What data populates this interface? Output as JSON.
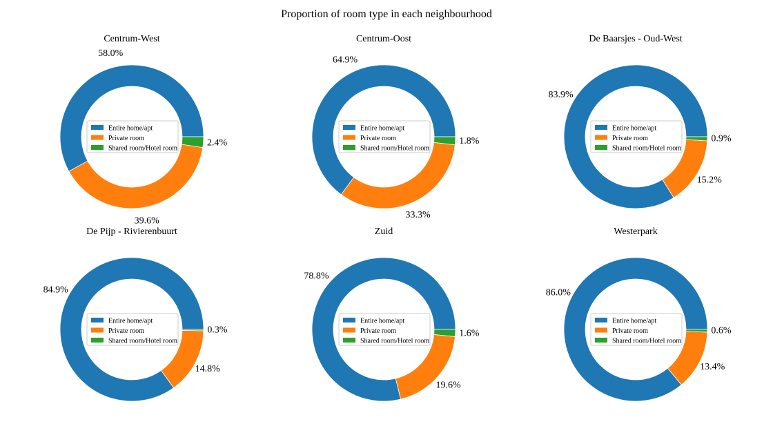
{
  "figure": {
    "title": "Proportion of room type in each neighbourhood"
  },
  "legend": {
    "entries": [
      "Entire home/apt",
      "Private room",
      "Shared room/Hotel room"
    ],
    "placement": "center",
    "colors": [
      "#1f77b4",
      "#ff7f0e",
      "#2ca02c"
    ]
  },
  "chart_data": [
    {
      "type": "pie",
      "style": "donut",
      "title": "Centrum-West",
      "categories": [
        "Entire home/apt",
        "Private room",
        "Shared room/Hotel room"
      ],
      "values": [
        58.0,
        39.6,
        2.4
      ],
      "labels": [
        "58.0%",
        "39.6%",
        "2.4%"
      ]
    },
    {
      "type": "pie",
      "style": "donut",
      "title": "Centrum-Oost",
      "categories": [
        "Entire home/apt",
        "Private room",
        "Shared room/Hotel room"
      ],
      "values": [
        64.9,
        33.3,
        1.8
      ],
      "labels": [
        "64.9%",
        "33.3%",
        "1.8%"
      ]
    },
    {
      "type": "pie",
      "style": "donut",
      "title": "De Baarsjes - Oud-West",
      "categories": [
        "Entire home/apt",
        "Private room",
        "Shared room/Hotel room"
      ],
      "values": [
        83.9,
        15.2,
        0.9
      ],
      "labels": [
        "83.9%",
        "15.2%",
        "0.9%"
      ]
    },
    {
      "type": "pie",
      "style": "donut",
      "title": "De Pijp - Rivierenbuurt",
      "categories": [
        "Entire home/apt",
        "Private room",
        "Shared room/Hotel room"
      ],
      "values": [
        84.9,
        14.8,
        0.3
      ],
      "labels": [
        "84.9%",
        "14.8%",
        "0.3%"
      ]
    },
    {
      "type": "pie",
      "style": "donut",
      "title": "Zuid",
      "categories": [
        "Entire home/apt",
        "Private room",
        "Shared room/Hotel room"
      ],
      "values": [
        78.8,
        19.6,
        1.6
      ],
      "labels": [
        "78.8%",
        "19.6%",
        "1.6%"
      ]
    },
    {
      "type": "pie",
      "style": "donut",
      "title": "Westerpark",
      "categories": [
        "Entire home/apt",
        "Private room",
        "Shared room/Hotel room"
      ],
      "values": [
        86.0,
        13.4,
        0.6
      ],
      "labels": [
        "86.0%",
        "13.4%",
        "0.6%"
      ]
    }
  ]
}
